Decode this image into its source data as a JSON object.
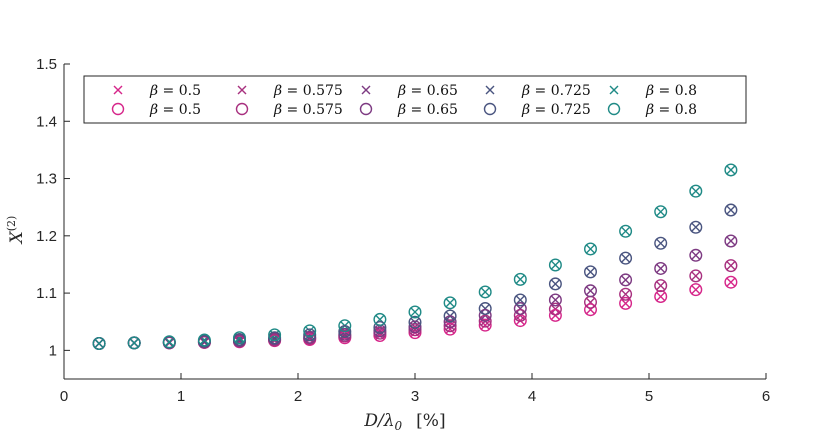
{
  "chart_data": {
    "type": "scatter",
    "title": "",
    "xlabel": "D/λ0",
    "xlabel_unit": "[%]",
    "ylabel": "X(2)",
    "xlim": [
      0,
      6
    ],
    "ylim": [
      0.95,
      1.5
    ],
    "xticks": [
      0,
      1,
      2,
      3,
      4,
      5,
      6
    ],
    "yticks": [
      1,
      1.1,
      1.2,
      1.3,
      1.4,
      1.5
    ],
    "xtick_labels": [
      "0",
      "1",
      "2",
      "3",
      "4",
      "5",
      "6"
    ],
    "ytick_labels": [
      "1",
      "1.1",
      "1.2",
      "1.3",
      "1.4",
      "1.5"
    ],
    "grid": false,
    "legend_position": "top",
    "x": [
      0.3,
      0.6,
      0.9,
      1.2,
      1.5,
      1.8,
      2.1,
      2.4,
      2.7,
      3.0,
      3.3,
      3.6,
      3.9,
      4.2,
      4.5,
      4.8,
      5.1,
      5.4,
      5.7
    ],
    "series": [
      {
        "name": "β = 0.5",
        "beta": "0.5",
        "marker": "x",
        "color": "#d6268a",
        "values": [
          1.012,
          1.013,
          1.013,
          1.014,
          1.015,
          1.017,
          1.019,
          1.022,
          1.026,
          1.031,
          1.037,
          1.044,
          1.052,
          1.061,
          1.071,
          1.082,
          1.094,
          1.106,
          1.119
        ]
      },
      {
        "name": "β = 0.575",
        "beta": "0.575",
        "marker": "x",
        "color": "#a8307f",
        "values": [
          1.012,
          1.013,
          1.013,
          1.014,
          1.016,
          1.018,
          1.021,
          1.025,
          1.03,
          1.036,
          1.043,
          1.051,
          1.061,
          1.072,
          1.084,
          1.098,
          1.113,
          1.13,
          1.148
        ]
      },
      {
        "name": "β = 0.65",
        "beta": "0.65",
        "marker": "x",
        "color": "#7d3a82",
        "values": [
          1.012,
          1.013,
          1.014,
          1.015,
          1.017,
          1.02,
          1.023,
          1.028,
          1.034,
          1.041,
          1.05,
          1.061,
          1.073,
          1.088,
          1.104,
          1.123,
          1.143,
          1.166,
          1.191
        ]
      },
      {
        "name": "β = 0.725",
        "beta": "0.725",
        "marker": "x",
        "color": "#4a5580",
        "values": [
          1.012,
          1.013,
          1.014,
          1.016,
          1.019,
          1.022,
          1.027,
          1.033,
          1.04,
          1.049,
          1.06,
          1.073,
          1.088,
          1.116,
          1.137,
          1.161,
          1.187,
          1.215,
          1.245
        ]
      },
      {
        "name": "β = 0.8",
        "beta": "0.8",
        "marker": "x",
        "color": "#1f8a86",
        "values": [
          1.012,
          1.013,
          1.015,
          1.018,
          1.022,
          1.027,
          1.034,
          1.043,
          1.054,
          1.067,
          1.083,
          1.102,
          1.124,
          1.149,
          1.177,
          1.208,
          1.242,
          1.278,
          1.315
        ]
      },
      {
        "name": "β = 0.5",
        "beta": "0.5",
        "marker": "o",
        "color": "#d6268a",
        "values": [
          1.012,
          1.013,
          1.013,
          1.014,
          1.015,
          1.017,
          1.019,
          1.022,
          1.026,
          1.031,
          1.037,
          1.044,
          1.052,
          1.061,
          1.071,
          1.082,
          1.094,
          1.106,
          1.119
        ]
      },
      {
        "name": "β = 0.575",
        "beta": "0.575",
        "marker": "o",
        "color": "#a8307f",
        "values": [
          1.012,
          1.013,
          1.013,
          1.014,
          1.016,
          1.018,
          1.021,
          1.025,
          1.03,
          1.036,
          1.043,
          1.051,
          1.061,
          1.072,
          1.084,
          1.098,
          1.113,
          1.13,
          1.148
        ]
      },
      {
        "name": "β = 0.65",
        "beta": "0.65",
        "marker": "o",
        "color": "#7d3a82",
        "values": [
          1.012,
          1.013,
          1.014,
          1.015,
          1.017,
          1.02,
          1.023,
          1.028,
          1.034,
          1.041,
          1.05,
          1.061,
          1.073,
          1.088,
          1.104,
          1.123,
          1.143,
          1.166,
          1.191
        ]
      },
      {
        "name": "β = 0.725",
        "beta": "0.725",
        "marker": "o",
        "color": "#4a5580",
        "values": [
          1.012,
          1.013,
          1.014,
          1.016,
          1.019,
          1.022,
          1.027,
          1.033,
          1.04,
          1.049,
          1.06,
          1.073,
          1.088,
          1.116,
          1.137,
          1.161,
          1.187,
          1.215,
          1.245
        ]
      },
      {
        "name": "β = 0.8",
        "beta": "0.8",
        "marker": "o",
        "color": "#1f8a86",
        "values": [
          1.012,
          1.013,
          1.015,
          1.018,
          1.022,
          1.027,
          1.034,
          1.043,
          1.054,
          1.067,
          1.083,
          1.102,
          1.124,
          1.149,
          1.177,
          1.208,
          1.242,
          1.278,
          1.315
        ]
      }
    ]
  }
}
